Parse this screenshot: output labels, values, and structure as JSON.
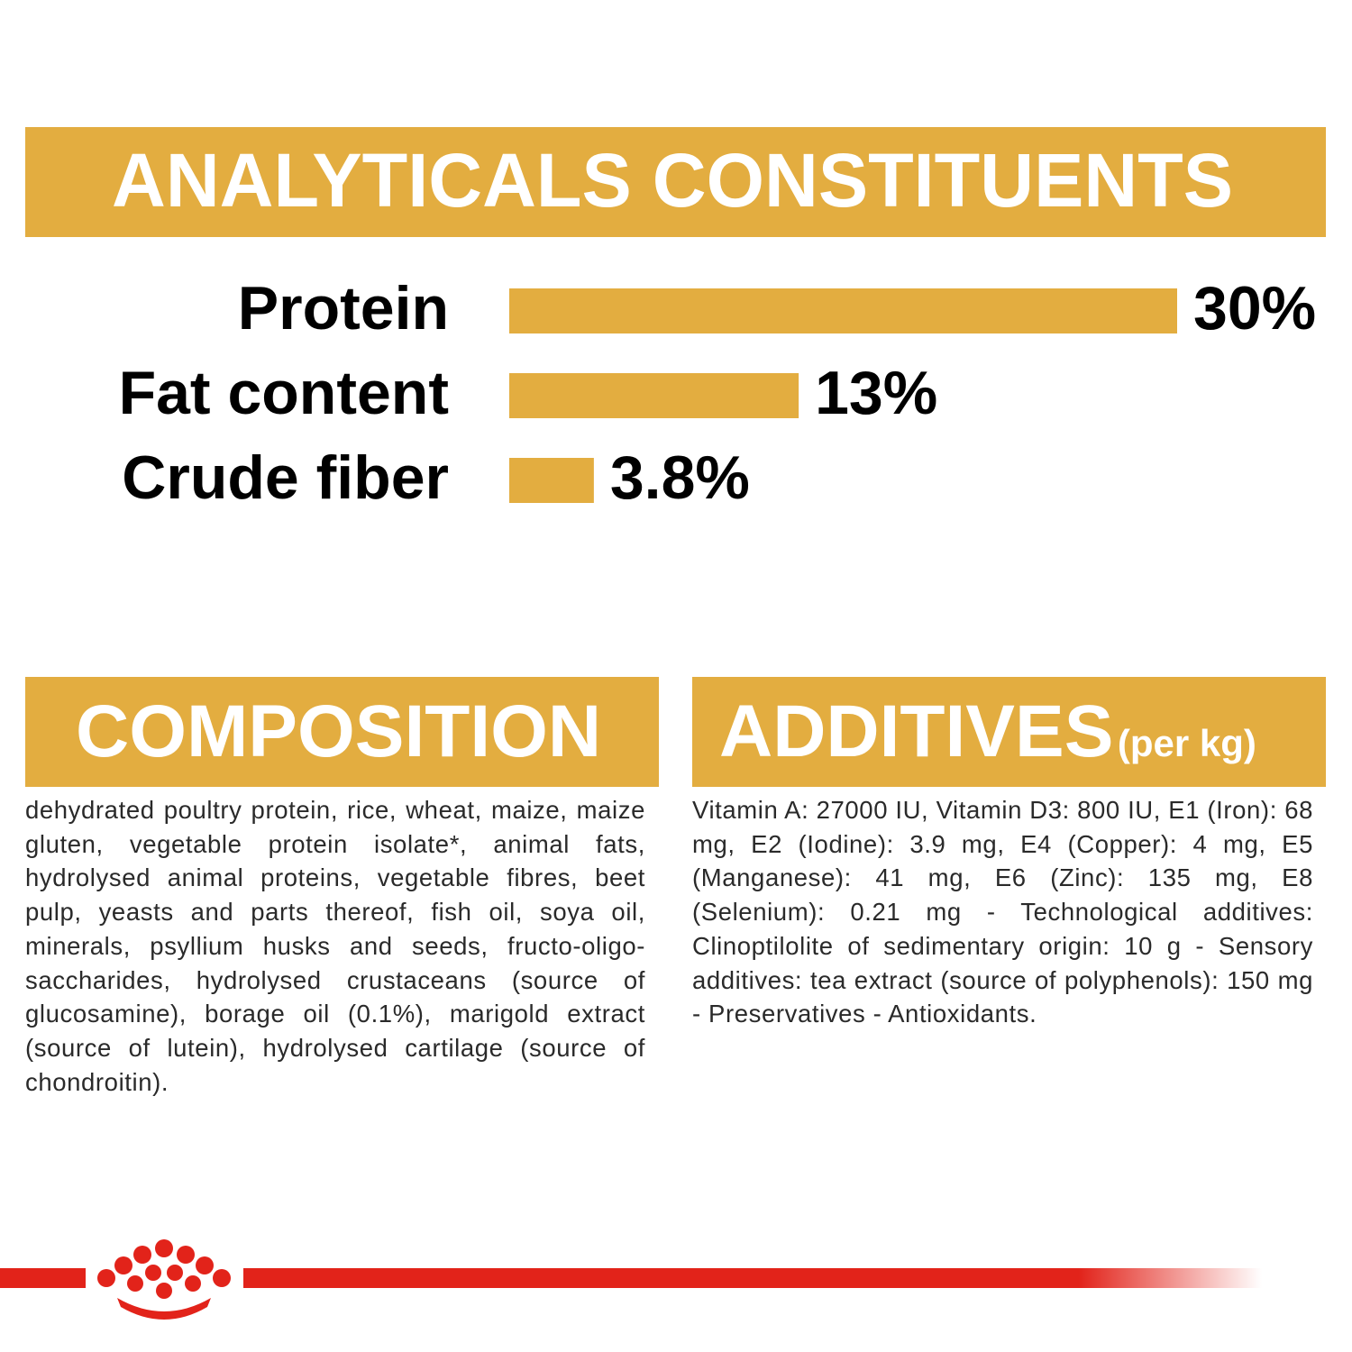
{
  "chart_data": {
    "type": "bar",
    "orientation": "horizontal",
    "title": "ANALYTICALS CONSTITUENTS",
    "categories": [
      "Protein",
      "Fat content",
      "Crude fiber"
    ],
    "values": [
      30,
      13,
      3.8
    ],
    "value_labels": [
      "30%",
      "13%",
      "3.8%"
    ],
    "color": "#e3ad40"
  },
  "composition": {
    "title": "COMPOSITION",
    "text": "dehydrated poultry protein, rice, wheat, maize, maize gluten, vegetable protein isolate*, animal fats, hydrolysed animal proteins, vegetable fibres, beet pulp, yeasts and parts thereof, fish oil, soya oil, minerals, psyllium husks and seeds, fructo-oligo-saccharides, hydrolysed crustaceans (source of glucosamine), borage oil (0.1%), marigold extract (source of lutein), hydrolysed cartilage (source of chondroitin)."
  },
  "additives": {
    "title": "ADDITIVES",
    "subtitle": "(per kg)",
    "text": "Vitamin A: 27000 IU, Vitamin D3: 800 IU, E1 (Iron): 68 mg, E2 (Iodine): 3.9 mg, E4 (Copper): 4 mg, E5 (Manganese): 41 mg, E6 (Zinc): 135 mg, E8 (Selenium): 0.21 mg - Technological additives: Clinoptilolite of sedimentary origin: 10 g - Sensory additives: tea extract (source of polyphenols): 150 mg - Preservatives - Antioxidants."
  }
}
